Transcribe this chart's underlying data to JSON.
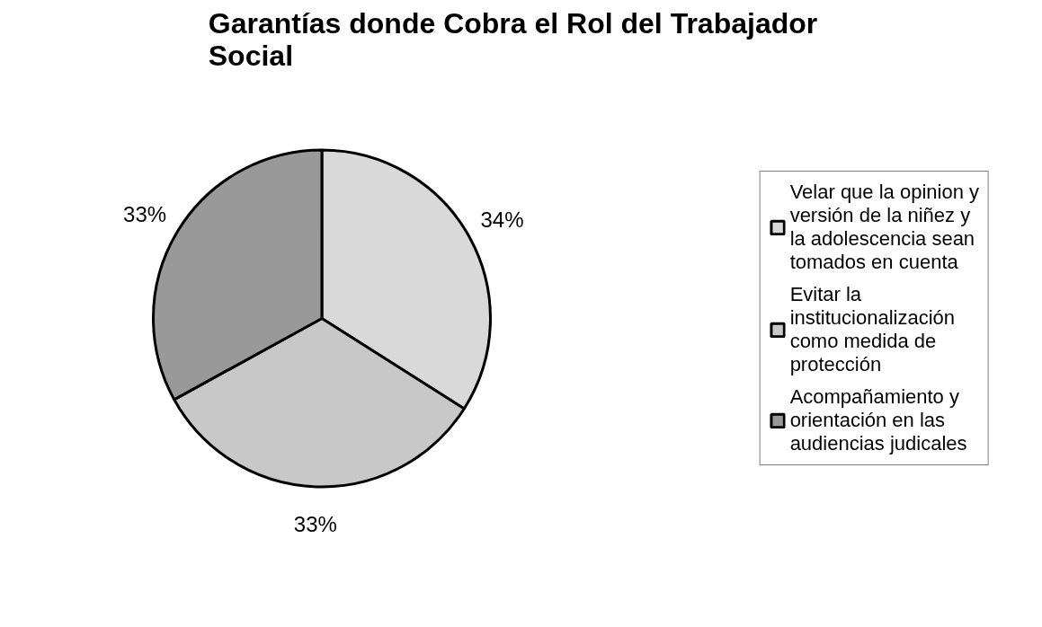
{
  "chart_data": {
    "type": "pie",
    "title": "Garantías donde Cobra el Rol del Trabajador Social",
    "categories": [
      "Velar que la opinion y versión de la niñez y la adolescencia sean tomados en cuenta",
      "Evitar la institucionalización como medida de protección",
      "Acompañamiento y orientación en las audiencias judicales"
    ],
    "values": [
      34,
      33,
      33
    ],
    "colors": [
      "#d9d9d9",
      "#c8c8c8",
      "#999999"
    ],
    "value_labels": [
      "34%",
      "33%",
      "33%"
    ],
    "legend": "right"
  }
}
